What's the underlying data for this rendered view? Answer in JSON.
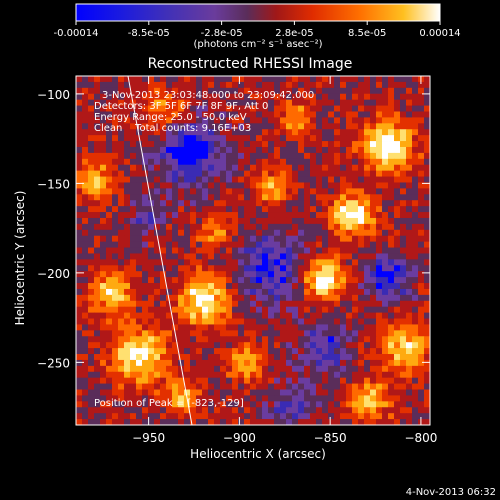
{
  "colorbar": {
    "tick_labels": [
      "-0.00014",
      "-8.5e-05",
      "-2.8e-05",
      "2.8e-05",
      "8.5e-05",
      "0.00014"
    ],
    "unit_label": "(photons cm⁻² s⁻¹ asec⁻²)",
    "colormap": [
      "#0000ff",
      "#3a2bb4",
      "#6a3ca0",
      "#5a2d5a",
      "#b01818",
      "#e33000",
      "#ff6a00",
      "#ffaa10",
      "#ffe070",
      "#ffffff"
    ]
  },
  "plot": {
    "title": "Reconstructed RHESSI Image",
    "xlabel": "Heliocentric X (arcsec)",
    "ylabel": "Heliocentric Y (arcsec)",
    "x_ticks": [
      "-950",
      "-900",
      "-850",
      "-800"
    ],
    "y_ticks": [
      "-100",
      "-150",
      "-200",
      "-250"
    ],
    "xlim": [
      -990,
      -795
    ],
    "ylim": [
      -285,
      -90
    ],
    "annotations": [
      "3-Nov-2013 23:03:48.000 to 23:09:42.000",
      "Detectors: 3F 5F 6F 7F 8F 9F, Att 0",
      "Energy Range: 25.0 - 50.0 keV",
      "Clean    Total counts: 9.16E+03"
    ],
    "peak_label": "Position of Peak = [-823,-129]"
  },
  "footer": {
    "timestamp": "4-Nov-2013 06:32"
  }
}
